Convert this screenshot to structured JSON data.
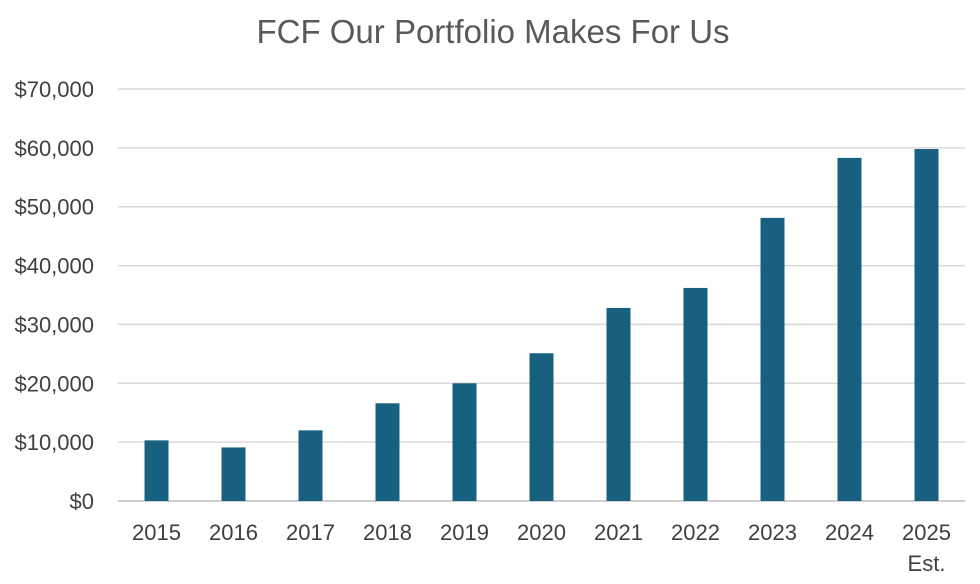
{
  "chart_data": {
    "type": "bar",
    "title": "FCF Our Portfolio Makes For Us",
    "xlabel": "",
    "ylabel": "",
    "categories": [
      "2015",
      "2016",
      "2017",
      "2018",
      "2019",
      "2020",
      "2021",
      "2022",
      "2023",
      "2024",
      "2025 Est."
    ],
    "category_labels": [
      [
        "2015"
      ],
      [
        "2016"
      ],
      [
        "2017"
      ],
      [
        "2018"
      ],
      [
        "2019"
      ],
      [
        "2020"
      ],
      [
        "2021"
      ],
      [
        "2022"
      ],
      [
        "2023"
      ],
      [
        "2024"
      ],
      [
        "2025",
        "Est."
      ]
    ],
    "series": [
      {
        "name": "FCF",
        "color": "#17607f",
        "values": [
          10300,
          9100,
          12000,
          16600,
          20000,
          25100,
          32800,
          36200,
          48100,
          58300,
          59800
        ]
      }
    ],
    "ylim": [
      0,
      70000
    ],
    "yticks": [
      0,
      10000,
      20000,
      30000,
      40000,
      50000,
      60000,
      70000
    ],
    "ytick_labels": [
      "$0",
      "$10,000",
      "$20,000",
      "$30,000",
      "$40,000",
      "$50,000",
      "$60,000",
      "$70,000"
    ],
    "grid": true,
    "legend": "none"
  }
}
